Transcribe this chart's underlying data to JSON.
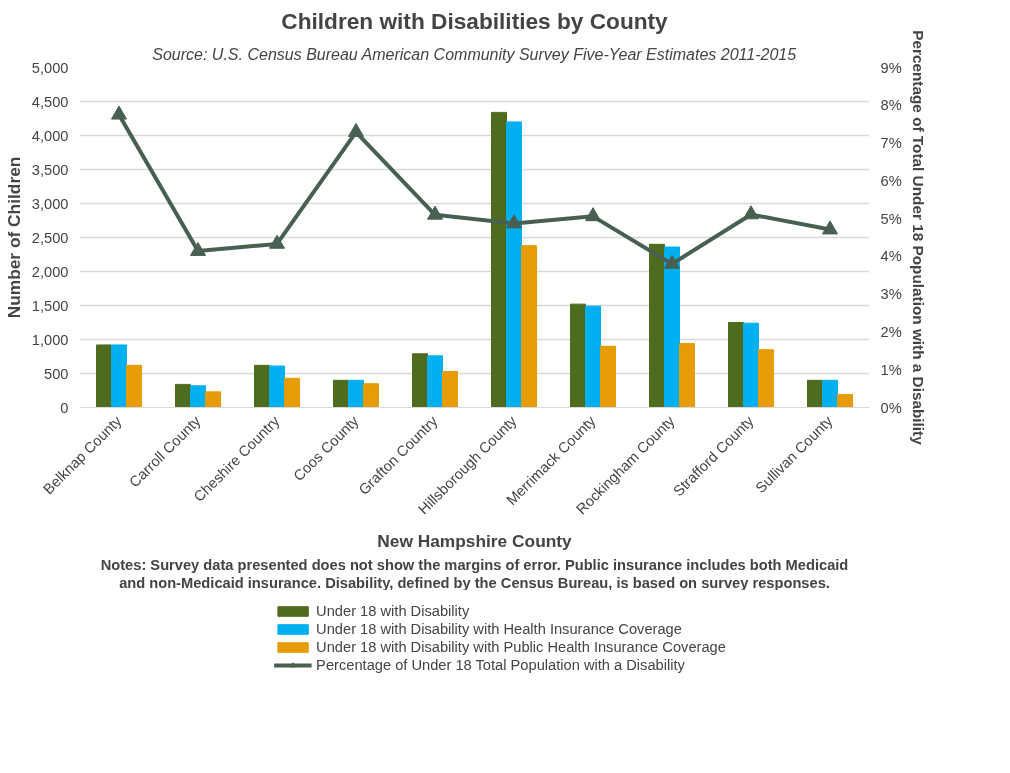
{
  "chart_data": {
    "type": "bar",
    "title": "Children with Disabilities by County",
    "subtitle": "Source: U.S. Census Bureau American Community Survey Five-Year Estimates 2011-2015",
    "xlabel": "New Hampshire County",
    "ylabel": "Number of Children",
    "y2label": "Percentage of Total Under 18 Population with a Disability",
    "annotations": [
      "Notes: Survey data presented does not show the margins of error. Public insurance includes both Medicaid",
      "and non-Medicaid insurance. Disability, defined by the Census Bureau, is based on survey responses."
    ],
    "categories": [
      "Belknap County",
      "Carroll County",
      "Cheshire Country",
      "Coos County",
      "Grafton Country",
      "Hillsborough County",
      "Merrimack County",
      "Rockingham County",
      "Strafford County",
      "Sullivan County"
    ],
    "series": [
      {
        "name": "Under 18 with Disability",
        "color": "#4f6b1e",
        "values": [
          920,
          340,
          620,
          400,
          790,
          4340,
          1520,
          2400,
          1250,
          400
        ]
      },
      {
        "name": "Under 18 with Disability with Health Insurance Coverage",
        "color": "#00b0f0",
        "values": [
          920,
          320,
          610,
          400,
          760,
          4200,
          1490,
          2360,
          1240,
          400
        ]
      },
      {
        "name": "Under 18 with Disability with Public Health Insurance Coverage",
        "color": "#e69c07",
        "values": [
          620,
          230,
          430,
          350,
          530,
          2380,
          900,
          940,
          850,
          190
        ]
      },
      {
        "name": "Percentage of Under 18 Total Population with a Disability",
        "type": "line",
        "axis": "y2",
        "color": "#476052",
        "marker": "triangle",
        "values": [
          7.75,
          4.14,
          4.33,
          7.29,
          5.1,
          4.87,
          5.06,
          3.8,
          5.11,
          4.71
        ]
      }
    ],
    "ylim": [
      0,
      5000
    ],
    "yticks": [
      0,
      {
        "value": 500,
        "label": "500"
      },
      {
        "value": 1000,
        "label": "1,000"
      },
      {
        "value": 1500,
        "label": "1,500"
      },
      {
        "value": 2000,
        "label": "2,000"
      },
      {
        "value": 2500,
        "label": "2,500"
      },
      {
        "value": 3000,
        "label": "3,000"
      },
      {
        "value": 3500,
        "label": "3,500"
      },
      {
        "value": 4000,
        "label": "4,000"
      },
      {
        "value": 4500,
        "label": "4,500"
      },
      {
        "value": 5000,
        "label": "5,000"
      }
    ],
    "y2lim": [
      0,
      9
    ],
    "y2ticks": [
      {
        "value": 0,
        "label": "0%"
      },
      {
        "value": 1,
        "label": "1%"
      },
      {
        "value": 2,
        "label": "2%"
      },
      {
        "value": 3,
        "label": "3%"
      },
      {
        "value": 4,
        "label": "4%"
      },
      {
        "value": 5,
        "label": "5%"
      },
      {
        "value": 6,
        "label": "6%"
      },
      {
        "value": 7,
        "label": "7%"
      },
      {
        "value": 8,
        "label": "8%"
      },
      {
        "value": 9,
        "label": "9%"
      }
    ],
    "grid": "y",
    "legend": "bottom"
  }
}
